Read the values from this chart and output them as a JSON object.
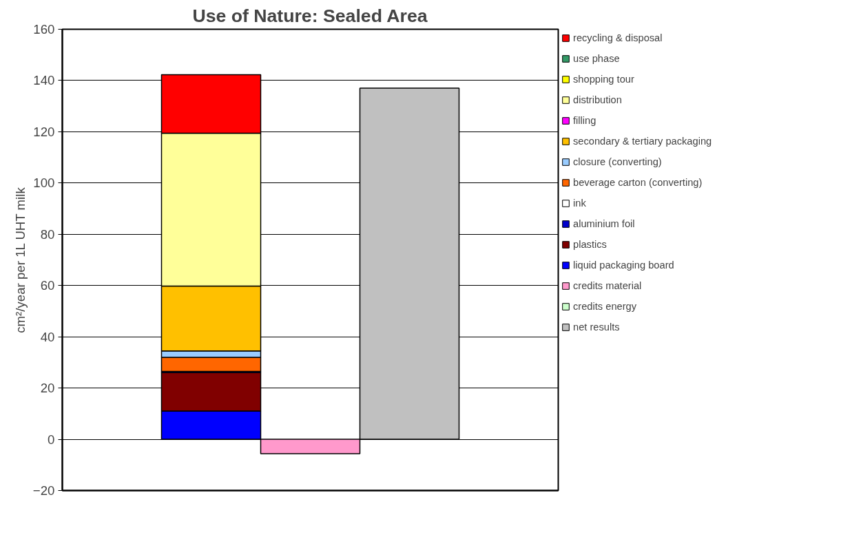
{
  "chart_data": {
    "type": "bar",
    "title": "Use of Nature: Sealed Area",
    "ylabel": "cm²/year per 1L UHT milk",
    "categories": [
      null,
      null,
      null,
      null,
      null
    ],
    "stacked": true,
    "ylim": [
      -20,
      160
    ],
    "yticks": [
      -20,
      0,
      20,
      40,
      60,
      80,
      100,
      120,
      140,
      160
    ],
    "grid": "y",
    "legend": "right",
    "series": [
      {
        "name": "liquid packaging board",
        "color": "#0000ff",
        "values": [
          null,
          11,
          null,
          null,
          null
        ]
      },
      {
        "name": "plastics",
        "color": "#800000",
        "values": [
          null,
          15,
          null,
          null,
          null
        ]
      },
      {
        "name": "aluminium foil",
        "color": "#0000cc",
        "values": [
          null,
          0.5,
          null,
          null,
          null
        ]
      },
      {
        "name": "ink",
        "color": "#ffffff",
        "values": [
          null,
          0,
          null,
          null,
          null
        ]
      },
      {
        "name": "beverage carton (converting)",
        "color": "#ff6600",
        "values": [
          null,
          5.5,
          null,
          null,
          null
        ]
      },
      {
        "name": "closure (converting)",
        "color": "#99ccff",
        "values": [
          null,
          2.5,
          null,
          null,
          null
        ]
      },
      {
        "name": "secondary & tertiary packaging",
        "color": "#ffc000",
        "values": [
          null,
          25.3,
          null,
          null,
          null
        ]
      },
      {
        "name": "filling",
        "color": "#ff00ff",
        "values": [
          null,
          0,
          null,
          null,
          null
        ]
      },
      {
        "name": "distribution",
        "color": "#ffff99",
        "values": [
          null,
          59.6,
          null,
          null,
          null
        ]
      },
      {
        "name": "shopping tour",
        "color": "#ffff00",
        "values": [
          null,
          0,
          null,
          null,
          null
        ]
      },
      {
        "name": "use phase",
        "color": "#339966",
        "values": [
          null,
          0,
          null,
          null,
          null
        ]
      },
      {
        "name": "recycling & disposal",
        "color": "#ff0000",
        "values": [
          null,
          22.9,
          null,
          null,
          null
        ]
      },
      {
        "name": "credits material",
        "color": "#ff99cc",
        "values": [
          null,
          null,
          -5.6,
          null,
          null
        ]
      },
      {
        "name": "credits energy",
        "color": "#ccffcc",
        "values": [
          null,
          null,
          0,
          null,
          null
        ]
      },
      {
        "name": "net results",
        "color": "#c0c0c0",
        "values": [
          null,
          null,
          null,
          137,
          null
        ]
      }
    ]
  }
}
